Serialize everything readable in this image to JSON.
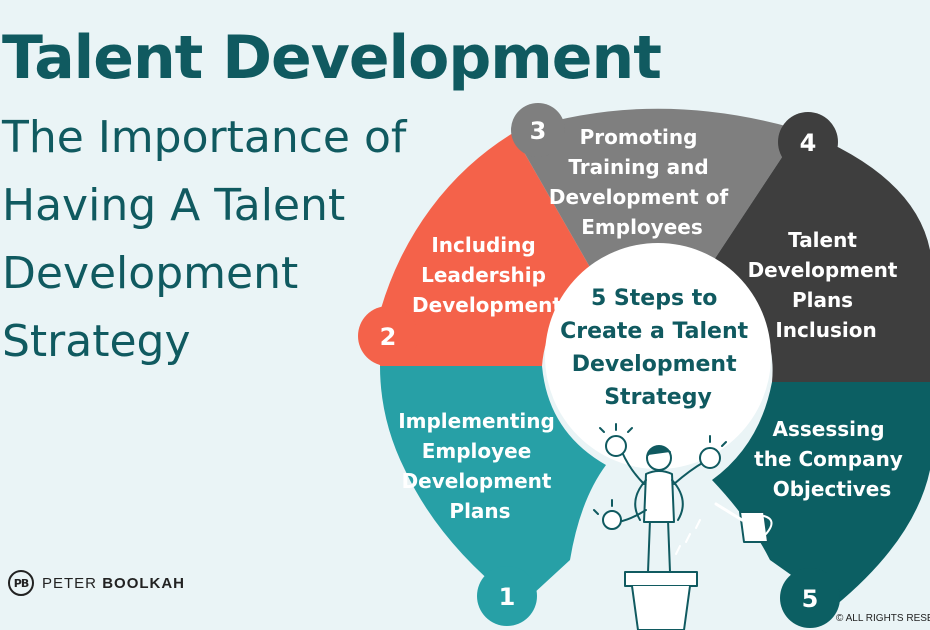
{
  "title": "Talent Development",
  "subtitle_lines": [
    "The Importance of",
    "Having A Talent",
    "Development",
    "Strategy"
  ],
  "center": {
    "lines": [
      "5 Steps to",
      "Create a Talent",
      "Development",
      "Strategy"
    ]
  },
  "steps": [
    {
      "number": "1",
      "lines": [
        "Implementing",
        "Employee",
        "Development",
        "Plans"
      ],
      "color": "#27a0a6"
    },
    {
      "number": "2",
      "lines": [
        "Including",
        "Leadership",
        "Development"
      ],
      "color": "#f4624a"
    },
    {
      "number": "3",
      "lines": [
        "Promoting",
        "Training and",
        "Development of",
        "Employees"
      ],
      "color": "#7f7f7f"
    },
    {
      "number": "4",
      "lines": [
        "Talent",
        "Development",
        "Plans",
        "Inclusion"
      ],
      "color": "#3e3e3e"
    },
    {
      "number": "5",
      "lines": [
        "Assessing",
        "the Company",
        "Objectives"
      ],
      "color": "#0c5f63"
    }
  ],
  "brand": {
    "logo": "PB",
    "first": "PETER",
    "last": "BOOLKAH"
  },
  "copyright": "© ALL RIGHTS RESE",
  "colors": {
    "text_dark": "#105a60",
    "background": "#eaf4f6",
    "center_fill": "#ffffff"
  }
}
